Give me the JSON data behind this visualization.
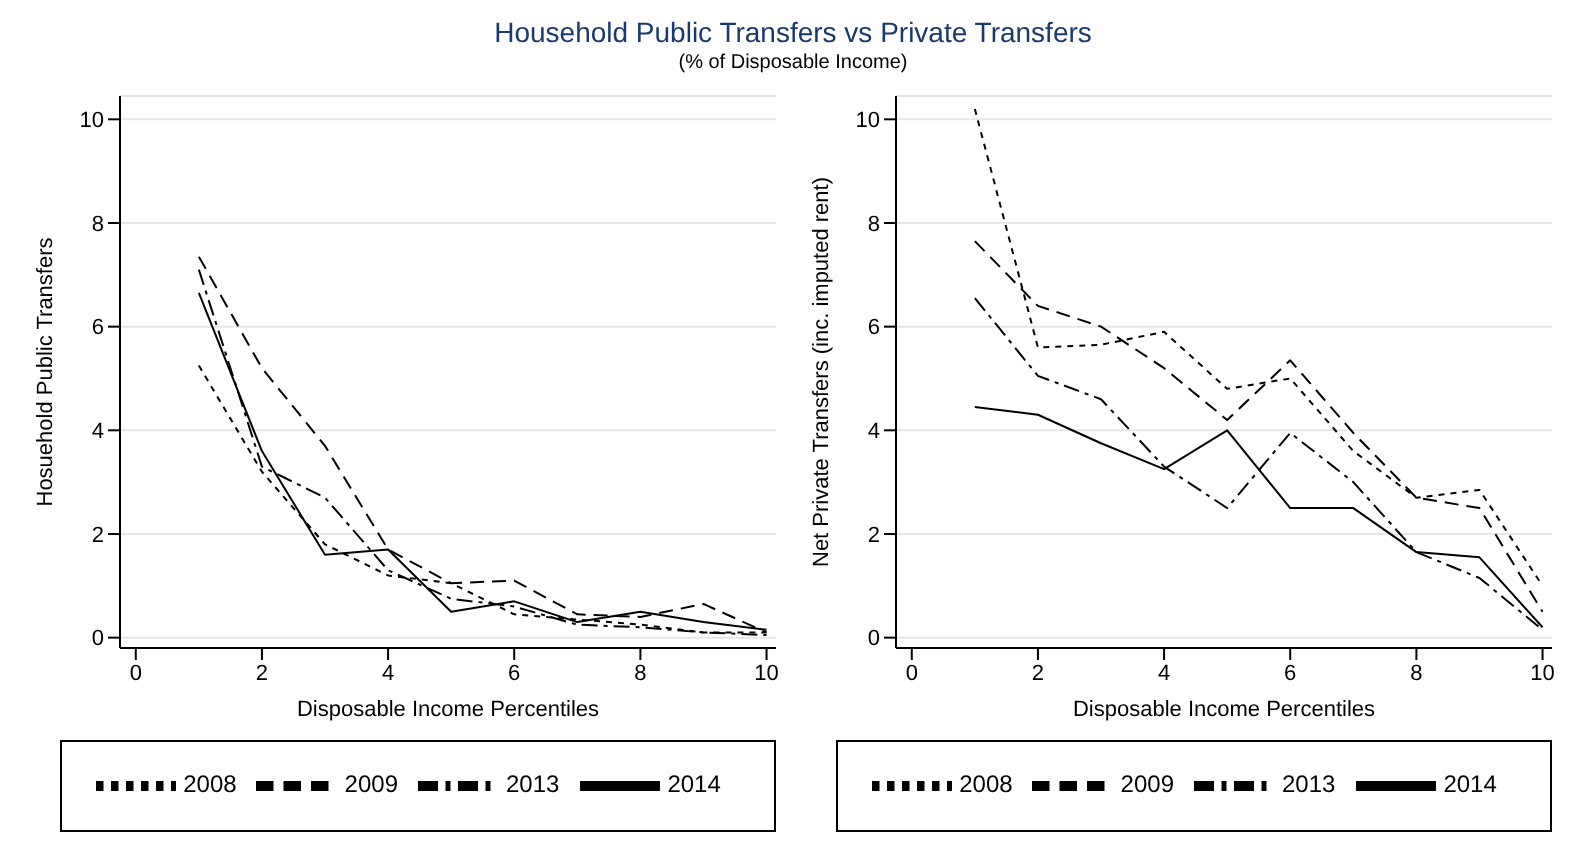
{
  "chart_data": [
    {
      "type": "line",
      "title": "Household Public Transfers vs Private Transfers",
      "subtitle": "(% of Disposable Income)",
      "xlabel": "Disposable Income Percentiles",
      "ylabel": "Hosuehold Public Transfers",
      "x": [
        1,
        2,
        3,
        4,
        5,
        6,
        7,
        8,
        9,
        10
      ],
      "xlim": [
        -0.25,
        10.15
      ],
      "xticks": [
        0,
        2,
        4,
        6,
        8,
        10
      ],
      "ylim": [
        -0.2,
        10.45
      ],
      "yticks": [
        0,
        2,
        4,
        6,
        8,
        10
      ],
      "grid": "y",
      "legend": "bottom",
      "marker": "none",
      "series": [
        {
          "name": "2008",
          "color": "#000000",
          "line_style": "dotted",
          "values": [
            5.25,
            3.2,
            1.8,
            1.2,
            1.05,
            0.45,
            0.35,
            0.25,
            0.1,
            0.1
          ]
        },
        {
          "name": "2009",
          "color": "#000000",
          "line_style": "dashed",
          "values": [
            7.35,
            5.2,
            3.7,
            1.7,
            1.05,
            1.1,
            0.45,
            0.4,
            0.65,
            0.1
          ]
        },
        {
          "name": "2013",
          "color": "#000000",
          "line_style": "dashdot",
          "values": [
            7.1,
            3.3,
            2.7,
            1.3,
            0.75,
            0.6,
            0.25,
            0.2,
            0.1,
            0.05
          ]
        },
        {
          "name": "2014",
          "color": "#000000",
          "line_style": "solid",
          "values": [
            6.65,
            3.6,
            1.6,
            1.7,
            0.5,
            0.7,
            0.3,
            0.5,
            0.3,
            0.15
          ]
        }
      ]
    },
    {
      "type": "line",
      "xlabel": "Disposable Income Percentiles",
      "ylabel": "Net Private Transfers (inc. imputed rent)",
      "x": [
        1,
        2,
        3,
        4,
        5,
        6,
        7,
        8,
        9,
        10
      ],
      "xlim": [
        -0.25,
        10.15
      ],
      "xticks": [
        0,
        2,
        4,
        6,
        8,
        10
      ],
      "ylim": [
        -0.2,
        10.45
      ],
      "yticks": [
        0,
        2,
        4,
        6,
        8,
        10
      ],
      "grid": "y",
      "legend": "bottom",
      "marker": "none",
      "series": [
        {
          "name": "2008",
          "color": "#000000",
          "line_style": "dotted",
          "values": [
            10.2,
            5.6,
            5.65,
            5.9,
            4.8,
            5.0,
            3.6,
            2.7,
            2.85,
            1.0
          ]
        },
        {
          "name": "2009",
          "color": "#000000",
          "line_style": "dashed",
          "values": [
            7.65,
            6.4,
            6.0,
            5.2,
            4.2,
            5.35,
            3.95,
            2.7,
            2.5,
            0.5
          ]
        },
        {
          "name": "2013",
          "color": "#000000",
          "line_style": "dashdot",
          "values": [
            6.55,
            5.05,
            4.6,
            3.3,
            2.5,
            3.95,
            3.0,
            1.65,
            1.15,
            0.15
          ]
        },
        {
          "name": "2014",
          "color": "#000000",
          "line_style": "solid",
          "values": [
            4.45,
            4.3,
            3.75,
            3.25,
            4.0,
            2.5,
            2.5,
            1.65,
            1.55,
            0.2
          ]
        }
      ]
    }
  ]
}
